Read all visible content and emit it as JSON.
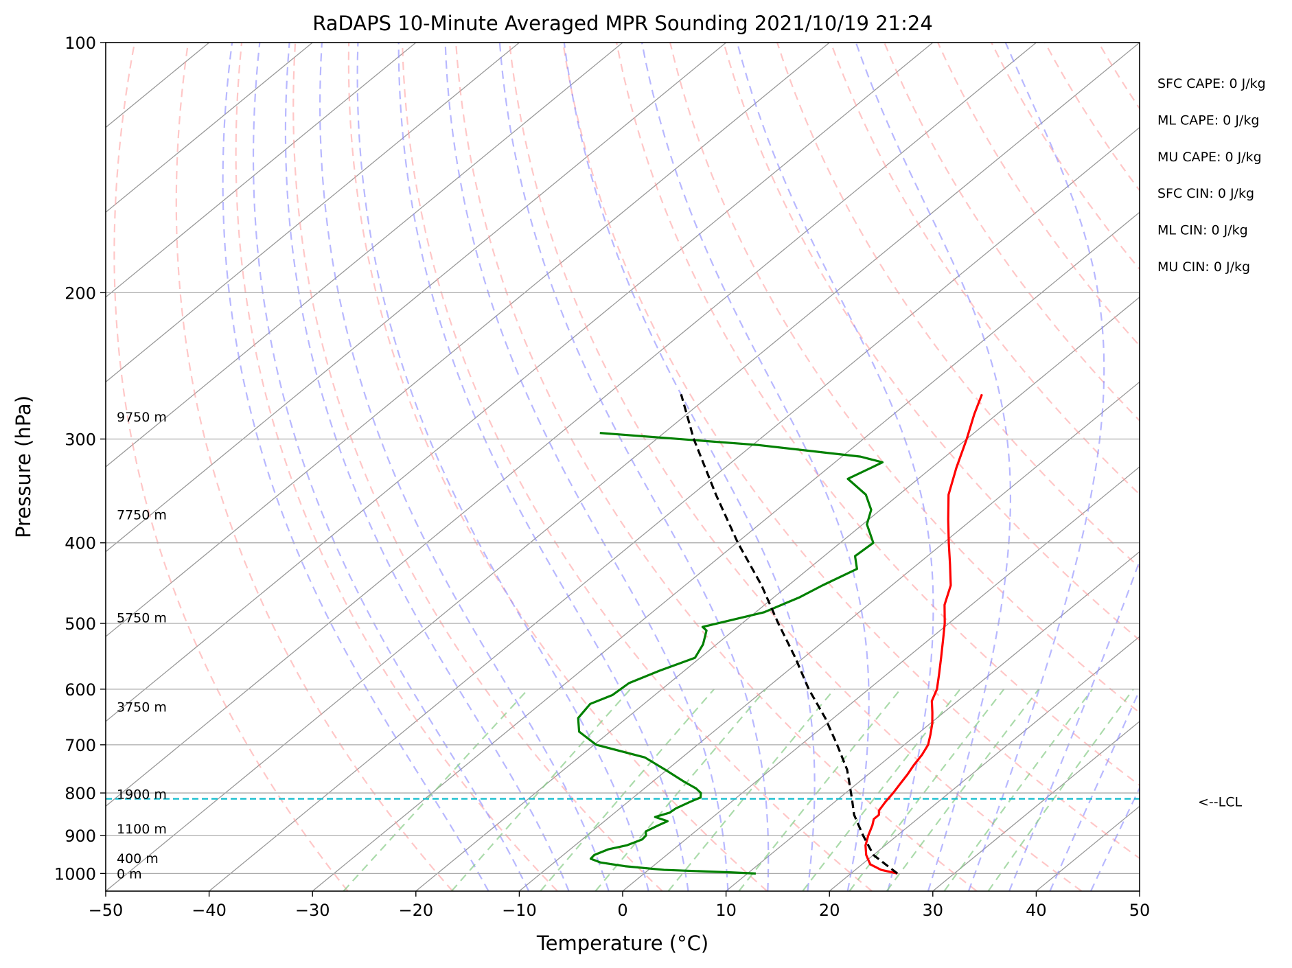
{
  "chart_data": {
    "type": "line",
    "title": "RaDAPS 10-Minute Averaged MPR Sounding 2021/10/19 21:24",
    "xlabel": "Temperature (°C)",
    "ylabel": "Pressure (hPa)",
    "xlim": [
      -50,
      50
    ],
    "ylim": [
      1050,
      100
    ],
    "y_scale": "log",
    "grid": true,
    "x_ticks": [
      "−50",
      "−40",
      "−30",
      "−20",
      "−10",
      "0",
      "10",
      "20",
      "30",
      "40",
      "50"
    ],
    "x_tick_values": [
      -50,
      -40,
      -30,
      -20,
      -10,
      0,
      10,
      20,
      30,
      40,
      50
    ],
    "y_ticks": [
      "100",
      "200",
      "300",
      "400",
      "500",
      "600",
      "700",
      "800",
      "900",
      "1000"
    ],
    "y_tick_values": [
      100,
      200,
      300,
      400,
      500,
      600,
      700,
      800,
      900,
      1000
    ],
    "colors": {
      "temperature": "#ff0000",
      "dewpoint": "#008000",
      "parcel": "#000000",
      "lcl_line": "#17becf",
      "dry_adiabat": "#ff9999",
      "moist_adiabat": "#8888ff",
      "mixing_ratio": "#88cc88",
      "isotherm": "#999999",
      "isobar": "#aaaaaa"
    },
    "series": [
      {
        "id": "temperature",
        "pressure": [
          1000,
          990,
          975,
          950,
          925,
          900,
          875,
          860,
          850,
          840,
          820,
          800,
          780,
          760,
          740,
          720,
          700,
          680,
          660,
          640,
          620,
          600,
          575,
          550,
          525,
          500,
          475,
          450,
          425,
          400,
          375,
          350,
          325,
          300,
          280,
          265
        ],
        "values": [
          24.5,
          22.5,
          20.8,
          19.3,
          18.1,
          17.2,
          16.4,
          15.8,
          15.8,
          15.3,
          14.9,
          14.6,
          14.2,
          13.8,
          13.3,
          12.9,
          12.3,
          11.3,
          10.2,
          8.9,
          7.5,
          6.6,
          5.0,
          3.3,
          1.5,
          -0.4,
          -2.6,
          -4.3,
          -6.8,
          -9.5,
          -12.3,
          -15.2,
          -17.6,
          -20.0,
          -22.2,
          -23.8
        ]
      },
      {
        "id": "dewpoint",
        "pressure": [
          1000,
          997,
          990,
          980,
          970,
          960,
          950,
          935,
          925,
          910,
          900,
          890,
          875,
          865,
          855,
          845,
          835,
          820,
          810,
          800,
          790,
          775,
          750,
          725,
          700,
          675,
          650,
          625,
          610,
          590,
          570,
          550,
          530,
          510,
          505,
          485,
          465,
          450,
          430,
          415,
          400,
          380,
          365,
          350,
          335,
          320,
          315,
          305,
          295
        ],
        "values": [
          10.8,
          8.3,
          1.5,
          -2.7,
          -5.5,
          -6.9,
          -7.0,
          -6.3,
          -5.0,
          -4.2,
          -4.3,
          -4.8,
          -4.3,
          -3.9,
          -5.6,
          -4.7,
          -4.6,
          -4.0,
          -3.5,
          -4.0,
          -5.0,
          -7.0,
          -10.2,
          -13.6,
          -19.8,
          -23.0,
          -24.7,
          -25.2,
          -24.1,
          -23.9,
          -22.4,
          -20.5,
          -21.3,
          -22.6,
          -23.4,
          -19.2,
          -17.5,
          -16.7,
          -15.3,
          -17.0,
          -16.8,
          -19.6,
          -20.9,
          -23.2,
          -26.8,
          -25.4,
          -28.2,
          -39.5,
          -56.2
        ]
      },
      {
        "id": "parcel",
        "pressure": [
          1000,
          950,
          900,
          850,
          813,
          780,
          750,
          700,
          650,
          600,
          550,
          500,
          450,
          400,
          350,
          300,
          265
        ],
        "values": [
          24.5,
          20.0,
          16.7,
          13.4,
          11.3,
          9.3,
          7.4,
          3.5,
          -0.8,
          -5.8,
          -10.8,
          -16.5,
          -22.6,
          -29.9,
          -37.7,
          -46.4,
          -52.9
        ]
      }
    ],
    "lcl": {
      "pressure": 813,
      "label": "<--LCL"
    },
    "height_labels": [
      {
        "label": "9750 m",
        "pressure": 282
      },
      {
        "label": "7750 m",
        "pressure": 370
      },
      {
        "label": "5750 m",
        "pressure": 492
      },
      {
        "label": "3750 m",
        "pressure": 630
      },
      {
        "label": "1900 m",
        "pressure": 802
      },
      {
        "label": "1100 m",
        "pressure": 883
      },
      {
        "label": "400 m",
        "pressure": 958
      },
      {
        "label": "0 m",
        "pressure": 1000
      }
    ],
    "annotations": [
      "SFC CAPE: 0 J/kg",
      "ML CAPE: 0 J/kg",
      "MU CAPE: 0 J/kg",
      "SFC CIN: 0 J/kg",
      "ML CIN: 0 J/kg",
      "MU CIN: 0 J/kg"
    ]
  }
}
